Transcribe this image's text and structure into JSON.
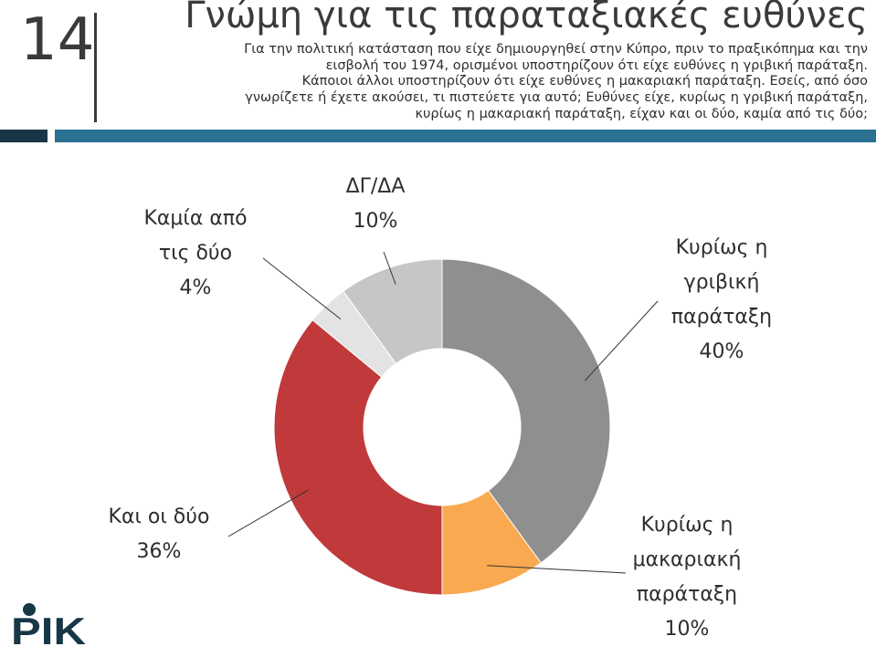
{
  "slide": {
    "number": "14",
    "title": "Γνώμη για τις παραταξιακές ευθύνες",
    "question_lines": [
      "Για την πολιτική κατάσταση που είχε δημιουργηθεί στην Κύπρο, πριν το πραξικόπημα και την",
      "εισβολή του 1974, ορισμένοι υποστηρίζουν ότι είχε ευθύνες η γριβική παράταξη.",
      "Κάποιοι άλλοι υποστηρίζουν ότι είχε ευθύνες η μακαριακή παράταξη. Εσείς, από όσο",
      "γνωρίζετε ή έχετε ακούσει, τι πιστεύετε για αυτό; Ευθύνες είχε, κυρίως η γριβική παράταξη,",
      "κυρίως η μακαριακή παράταξη, είχαν και οι δύο, καμία από τις δύο;"
    ]
  },
  "logo": {
    "text": "ΡΙΚ",
    "color": "#173746"
  },
  "chart_data": {
    "type": "pie",
    "style": "donut",
    "categories": [
      "Κυρίως η γριβική παράταξη",
      "Κυρίως η μακαριακή παράταξη",
      "Και οι δύο",
      "Καμία από τις δύο",
      "ΔΓ/ΔΑ"
    ],
    "values": [
      40,
      10,
      36,
      4,
      10
    ],
    "value_labels": [
      "40%",
      "10%",
      "36%",
      "4%",
      "10%"
    ],
    "label_lines": [
      [
        "Κυρίως η",
        "γριβική",
        "παράταξη",
        "40%"
      ],
      [
        "Κυρίως η",
        "μακαριακή",
        "παράταξη",
        "10%"
      ],
      [
        "Και οι δύο",
        "36%"
      ],
      [
        "Καμία από",
        "τις δύο",
        "4%"
      ],
      [
        "ΔΓ/ΔΑ",
        "10%"
      ]
    ],
    "colors": [
      "#8f8f8f",
      "#f9a94f",
      "#c0393b",
      "#e3e3e3",
      "#c6c6c6"
    ],
    "start": "top, clockwise"
  }
}
